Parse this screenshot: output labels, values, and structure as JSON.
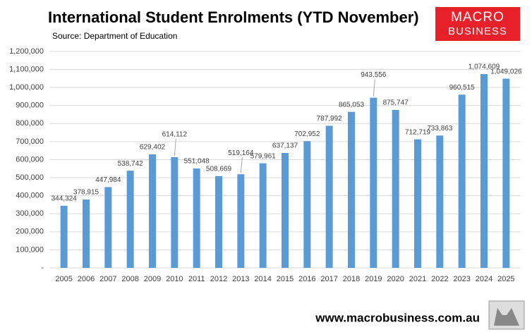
{
  "chart_data": {
    "type": "bar",
    "title": "International Student Enrolments (YTD November)",
    "subtitle": "Source: Department of Education",
    "categories": [
      "2005",
      "2006",
      "2007",
      "2008",
      "2009",
      "2010",
      "2011",
      "2012",
      "2013",
      "2014",
      "2015",
      "2016",
      "2017",
      "2018",
      "2019",
      "2020",
      "2021",
      "2022",
      "2023",
      "2024",
      "2025"
    ],
    "values": [
      344324,
      378915,
      447984,
      538742,
      629402,
      614112,
      551048,
      508669,
      519164,
      579961,
      637137,
      702952,
      787992,
      865053,
      943556,
      875747,
      712719,
      733863,
      960515,
      1074609,
      1049026
    ],
    "value_labels": [
      "344,324",
      "378,915",
      "447,984",
      "538,742",
      "629,402",
      "614,112",
      "551,048",
      "508,669",
      "519,164",
      "579,961",
      "637,137",
      "702,952",
      "787,992",
      "865,053",
      "943,556",
      "875,747",
      "712,719",
      "733,863",
      "960,515",
      "1,074,609",
      "1,049,026"
    ],
    "color": "#5b9bd5",
    "ylim": [
      0,
      1200000
    ],
    "yticks": [
      {
        "value": 0,
        "label": "-"
      },
      {
        "value": 100000,
        "label": "100,000"
      },
      {
        "value": 200000,
        "label": "200,000"
      },
      {
        "value": 300000,
        "label": "300,000"
      },
      {
        "value": 400000,
        "label": "400,000"
      },
      {
        "value": 500000,
        "label": "500,000"
      },
      {
        "value": 600000,
        "label": "600,000"
      },
      {
        "value": 700000,
        "label": "700,000"
      },
      {
        "value": 800000,
        "label": "800,000"
      },
      {
        "value": 900000,
        "label": "900,000"
      },
      {
        "value": 1000000,
        "label": "1,000,000"
      },
      {
        "value": 1100000,
        "label": "1,100,000"
      },
      {
        "value": 1200000,
        "label": "1,200,000"
      }
    ],
    "grid": true
  },
  "logo": {
    "line1": "MACRO",
    "line2": "BUSINESS"
  },
  "footer": "www.macrobusiness.com.au"
}
